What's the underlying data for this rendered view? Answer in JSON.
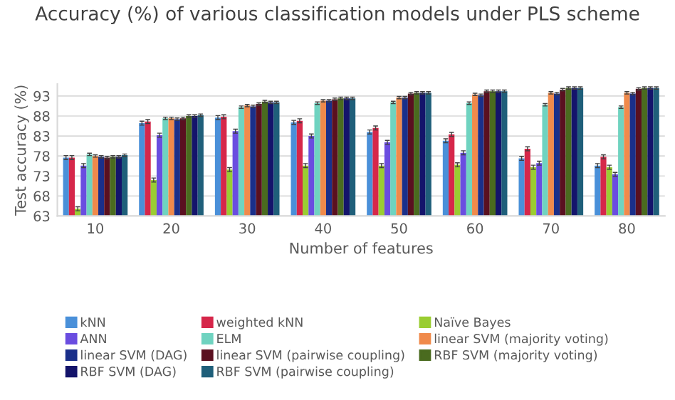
{
  "chart_data": {
    "type": "bar",
    "title": "Accuracy (%) of various classification models under PLS scheme",
    "xlabel": "Number of features",
    "ylabel": "Test accuracy (%)",
    "categories": [
      "10",
      "20",
      "30",
      "40",
      "50",
      "60",
      "70",
      "80"
    ],
    "ylim": [
      63,
      96
    ],
    "yticks": [
      63,
      68,
      73,
      78,
      83,
      88,
      93
    ],
    "grid": "y",
    "legend": "bottom",
    "series": [
      {
        "name": "kNN",
        "color": "#4a90d9",
        "values": [
          77.6,
          86.2,
          87.6,
          86.4,
          84.0,
          81.8,
          77.4,
          75.6
        ],
        "errors": [
          0.5,
          0.5,
          0.5,
          0.5,
          0.5,
          0.5,
          0.5,
          0.5
        ]
      },
      {
        "name": "weighted kNN",
        "color": "#d6274a",
        "values": [
          77.6,
          86.6,
          87.8,
          86.8,
          85.0,
          83.4,
          79.8,
          77.8
        ],
        "errors": [
          0.5,
          0.5,
          0.5,
          0.5,
          0.5,
          0.5,
          0.5,
          0.5
        ]
      },
      {
        "name": "Naïve Bayes",
        "color": "#9acd32",
        "values": [
          64.8,
          72.0,
          74.6,
          75.6,
          75.6,
          75.8,
          75.2,
          75.2
        ],
        "errors": [
          0.5,
          0.5,
          0.5,
          0.5,
          0.5,
          0.5,
          0.5,
          0.5
        ]
      },
      {
        "name": "ANN",
        "color": "#6a4de0",
        "values": [
          75.6,
          83.2,
          84.2,
          83.0,
          81.4,
          78.8,
          76.2,
          73.4
        ],
        "errors": [
          0.5,
          0.5,
          0.5,
          0.5,
          0.5,
          0.5,
          0.5,
          0.5
        ]
      },
      {
        "name": "ELM",
        "color": "#6fd3c0",
        "values": [
          78.4,
          87.4,
          90.2,
          91.2,
          91.4,
          91.2,
          90.8,
          90.2
        ],
        "errors": [
          0.3,
          0.3,
          0.3,
          0.3,
          0.3,
          0.3,
          0.3,
          0.3
        ]
      },
      {
        "name": "linear SVM (majority voting)",
        "color": "#f08a4b",
        "values": [
          78.0,
          87.4,
          90.6,
          91.8,
          92.6,
          93.4,
          93.8,
          93.8
        ],
        "errors": [
          0.3,
          0.3,
          0.3,
          0.3,
          0.3,
          0.3,
          0.3,
          0.3
        ]
      },
      {
        "name": "linear SVM (DAG)",
        "color": "#1a2f8a",
        "values": [
          77.8,
          87.2,
          90.4,
          91.8,
          92.6,
          93.2,
          93.6,
          93.6
        ],
        "errors": [
          0.3,
          0.3,
          0.3,
          0.3,
          0.3,
          0.3,
          0.3,
          0.3
        ]
      },
      {
        "name": "linear SVM (pairwise coupling)",
        "color": "#5a1020",
        "values": [
          77.6,
          87.4,
          91.0,
          92.2,
          93.6,
          94.2,
          94.6,
          94.8
        ],
        "errors": [
          0.3,
          0.3,
          0.3,
          0.3,
          0.3,
          0.3,
          0.3,
          0.3
        ]
      },
      {
        "name": "RBF SVM (majority voting)",
        "color": "#4a6b1f",
        "values": [
          77.8,
          88.0,
          91.6,
          92.4,
          93.8,
          94.2,
          95.0,
          95.0
        ],
        "errors": [
          0.3,
          0.3,
          0.3,
          0.3,
          0.3,
          0.3,
          0.3,
          0.3
        ]
      },
      {
        "name": "RBF SVM (DAG)",
        "color": "#14146b",
        "values": [
          77.8,
          88.0,
          91.4,
          92.4,
          93.8,
          94.2,
          95.0,
          95.0
        ],
        "errors": [
          0.3,
          0.3,
          0.3,
          0.3,
          0.3,
          0.3,
          0.3,
          0.3
        ]
      },
      {
        "name": "RBF SVM (pairwise coupling)",
        "color": "#1f5f7a",
        "values": [
          78.2,
          88.2,
          91.4,
          92.4,
          93.8,
          94.2,
          95.0,
          95.0
        ],
        "errors": [
          0.3,
          0.3,
          0.3,
          0.3,
          0.3,
          0.3,
          0.3,
          0.3
        ]
      }
    ]
  }
}
